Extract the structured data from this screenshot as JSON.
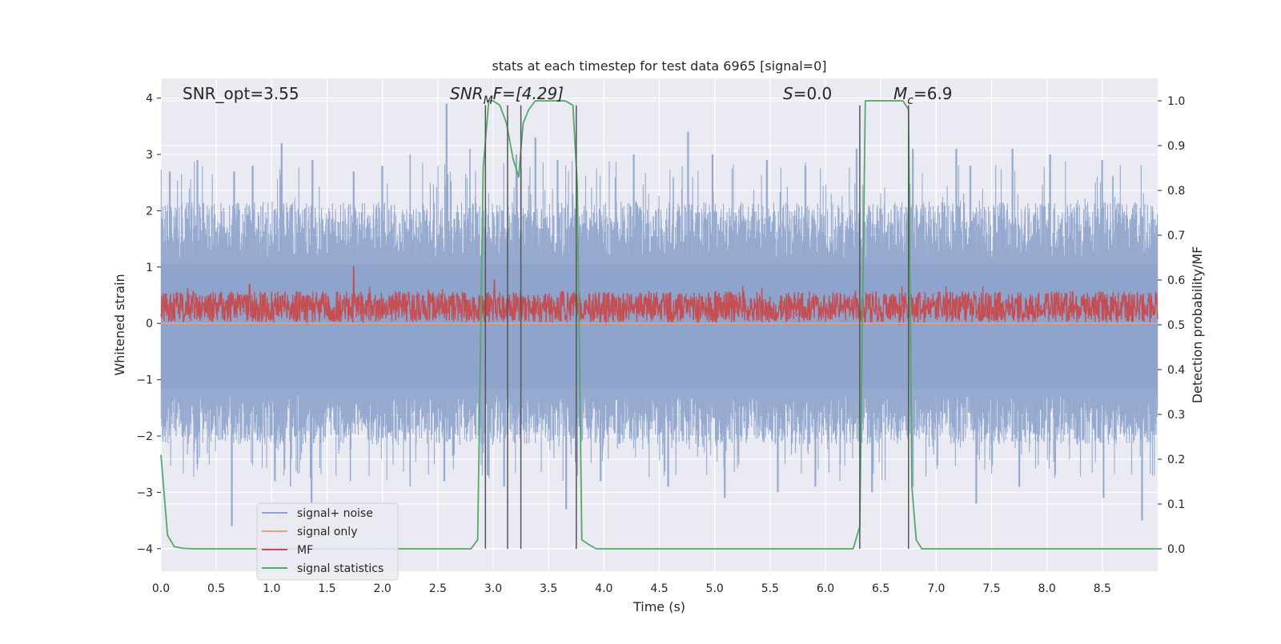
{
  "chart_data": {
    "type": "line",
    "title": "stats at each timestep for test data 6965 [signal=0]",
    "xlabel": "Time (s)",
    "ylabel": "Whitened strain",
    "y2label": "Detection probability/MF",
    "xlim": [
      0.0,
      9.0
    ],
    "ylim": [
      -4.4,
      4.35
    ],
    "y2lim": [
      -0.05,
      1.05
    ],
    "xticks": [
      0.0,
      0.5,
      1.0,
      1.5,
      2.0,
      2.5,
      3.0,
      3.5,
      4.0,
      4.5,
      5.0,
      5.5,
      6.0,
      6.5,
      7.0,
      7.5,
      8.0,
      8.5
    ],
    "xtick_labels": [
      "0.0",
      "0.5",
      "1.0",
      "1.5",
      "2.0",
      "2.5",
      "3.0",
      "3.5",
      "4.0",
      "4.5",
      "5.0",
      "5.5",
      "6.0",
      "6.5",
      "7.0",
      "7.5",
      "8.0",
      "8.5"
    ],
    "yticks": [
      4,
      3,
      2,
      1,
      0,
      -1,
      -2,
      -3,
      -4
    ],
    "ytick_labels": [
      "4",
      "3",
      "2",
      "1",
      "0",
      "−1",
      "−2",
      "−3",
      "−4"
    ],
    "y2ticks": [
      1.0,
      0.9,
      0.8,
      0.7,
      0.6,
      0.5,
      0.4,
      0.3,
      0.2,
      0.1,
      0.0
    ],
    "y2tick_labels": [
      "1.0",
      "0.9",
      "0.8",
      "0.7",
      "0.6",
      "0.5",
      "0.4",
      "0.3",
      "0.2",
      "0.1",
      "0.0"
    ],
    "annotations": {
      "snr_opt": "SNR_opt=3.55",
      "snr_mf_main": "SNR",
      "snr_mf_sub": "M",
      "snr_mf_rest": "F=[4.29]",
      "s_main": "S",
      "s_rest": "=0.0",
      "mc_main": "M",
      "mc_sub": "c",
      "mc_rest": "=6.9"
    },
    "series": [
      {
        "name": "signal+ noise",
        "color": "#8da3cc",
        "axis": "left",
        "style": "dense-noise",
        "peak_times": [
          0.08,
          0.33,
          0.66,
          0.83,
          1.09,
          1.37,
          1.74,
          2.0,
          2.25,
          2.58,
          2.79,
          3.21,
          3.38,
          3.58,
          4.27,
          4.76,
          4.98,
          5.47,
          5.82,
          6.28,
          6.79,
          7.18,
          7.31,
          7.69,
          8.03,
          8.5
        ],
        "peak_values": [
          2.7,
          2.9,
          2.7,
          2.8,
          3.2,
          2.9,
          2.7,
          2.8,
          3.0,
          3.9,
          3.1,
          3.0,
          3.3,
          2.9,
          3.0,
          3.4,
          3.0,
          2.9,
          2.8,
          3.1,
          3.1,
          3.1,
          2.8,
          3.1,
          3.0,
          2.9
        ],
        "trough_times": [
          0.33,
          0.64,
          1.03,
          1.17,
          1.36,
          1.71,
          2.25,
          2.56,
          2.95,
          3.1,
          3.66,
          3.97,
          4.58,
          5.09,
          5.57,
          5.91,
          6.42,
          6.79,
          7.36,
          7.75,
          8.51,
          8.86
        ],
        "trough_values": [
          -2.5,
          -3.6,
          -2.8,
          -2.9,
          -3.2,
          -2.8,
          -2.9,
          -2.8,
          -2.7,
          -2.9,
          -3.3,
          -2.8,
          -2.9,
          -3.1,
          -3.0,
          -2.9,
          -3.0,
          -2.9,
          -3.2,
          -2.9,
          -3.1,
          -3.5
        ]
      },
      {
        "name": "signal only",
        "color": "#e6a383",
        "axis": "left",
        "x": [
          0.0,
          9.0
        ],
        "y": [
          0.0,
          0.0
        ]
      },
      {
        "name": "MF",
        "color": "#c44e52",
        "axis": "right",
        "style": "dense-noise",
        "baseline": 0.54,
        "amplitude": 0.035,
        "peak_times": [
          0.24,
          0.8,
          1.74,
          3.01
        ],
        "peak_values": [
          0.58,
          0.59,
          0.63,
          0.6
        ]
      },
      {
        "name": "signal statistics",
        "color": "#55a868",
        "axis": "right",
        "x": [
          0.0,
          0.06,
          0.12,
          0.2,
          0.3,
          0.5,
          1.0,
          2.0,
          2.8,
          2.86,
          2.91,
          2.96,
          3.0,
          3.06,
          3.12,
          3.18,
          3.23,
          3.27,
          3.32,
          3.38,
          3.45,
          3.55,
          3.65,
          3.72,
          3.76,
          3.8,
          3.86,
          3.93,
          4.0,
          5.0,
          6.0,
          6.25,
          6.31,
          6.36,
          6.42,
          6.5,
          6.6,
          6.7,
          6.75,
          6.78,
          6.82,
          6.87,
          6.95,
          7.5,
          8.5,
          9.0
        ],
        "y": [
          0.21,
          0.03,
          0.005,
          0.001,
          0.0,
          0.0,
          0.0,
          0.0,
          0.0,
          0.02,
          0.85,
          1.0,
          1.0,
          0.99,
          0.95,
          0.87,
          0.83,
          0.95,
          0.98,
          1.0,
          1.0,
          1.0,
          1.0,
          0.99,
          0.81,
          0.02,
          0.01,
          0.0,
          0.0,
          0.0,
          0.0,
          0.0,
          0.05,
          1.0,
          1.0,
          1.0,
          1.0,
          1.0,
          0.98,
          0.14,
          0.02,
          0.0,
          0.0,
          0.0,
          0.0,
          0.0
        ]
      }
    ],
    "vertical_lines": [
      2.93,
      3.13,
      3.25,
      3.75,
      6.31,
      6.75
    ],
    "vertical_line_top": 0.99,
    "vertical_line_bottom": 0.0,
    "legend": {
      "location": "lower-left",
      "entries": [
        {
          "label": "signal+ noise",
          "color": "#8da3cc"
        },
        {
          "label": "signal only",
          "color": "#e6a383"
        },
        {
          "label": "MF",
          "color": "#c44e52"
        },
        {
          "label": "signal statistics",
          "color": "#55a868"
        }
      ]
    },
    "grid": true,
    "background_color": "#eaeaf2"
  }
}
